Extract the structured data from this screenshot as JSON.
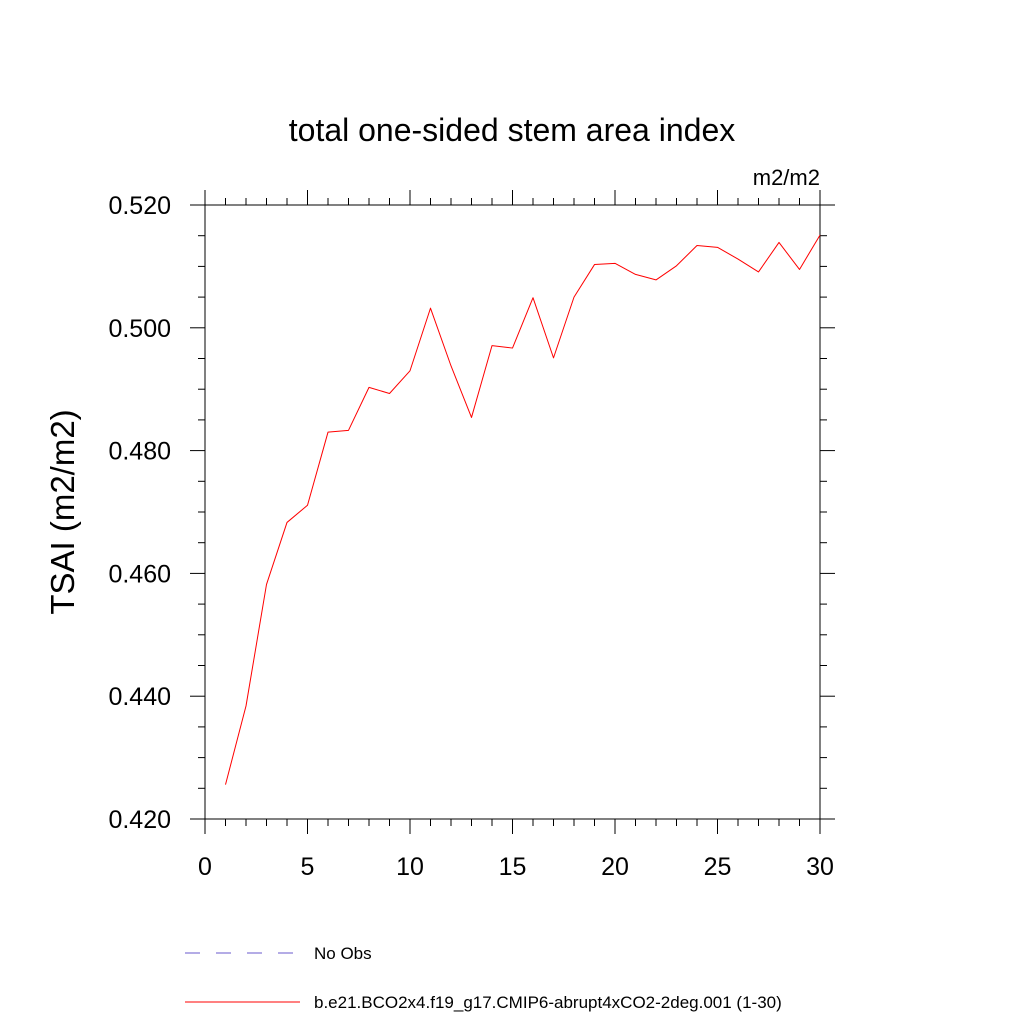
{
  "chart_data": {
    "type": "line",
    "title": "total one-sided stem area index",
    "units": "m2/m2",
    "xlabel": "",
    "ylabel": "TSAI  (m2/m2)",
    "xlim": [
      0,
      30
    ],
    "ylim": [
      0.42,
      0.52
    ],
    "x_ticks": [
      0,
      5,
      10,
      15,
      20,
      25,
      30
    ],
    "x_tick_labels": [
      "0",
      "5",
      "10",
      "15",
      "20",
      "25",
      "30"
    ],
    "y_ticks": [
      0.42,
      0.44,
      0.46,
      0.48,
      0.5,
      0.52
    ],
    "y_tick_labels": [
      "0.420",
      "0.440",
      "0.460",
      "0.480",
      "0.500",
      "0.520"
    ],
    "grid": false,
    "legend_placement": "bottom",
    "series": [
      {
        "name": "b.e21.BCO2x4.f19_g17.CMIP6-abrupt4xCO2-2deg.001 (1-30)",
        "color": "#ff0000",
        "style": "solid",
        "x": [
          1,
          2,
          3,
          4,
          5,
          6,
          7,
          8,
          9,
          10,
          11,
          12,
          13,
          14,
          15,
          16,
          17,
          18,
          19,
          20,
          21,
          22,
          23,
          24,
          25,
          26,
          27,
          28,
          29,
          30
        ],
        "y": [
          0.4256,
          0.4384,
          0.4582,
          0.4683,
          0.4711,
          0.483,
          0.4833,
          0.4903,
          0.4893,
          0.493,
          0.5032,
          0.4938,
          0.4854,
          0.4971,
          0.4967,
          0.5049,
          0.4951,
          0.505,
          0.5103,
          0.5105,
          0.5087,
          0.5078,
          0.5101,
          0.5134,
          0.5131,
          0.5112,
          0.5091,
          0.5139,
          0.5095,
          0.5151
        ]
      }
    ],
    "legend": [
      {
        "label": "No Obs",
        "color": "#6a5acd",
        "style": "dashed"
      },
      {
        "label": "b.e21.BCO2x4.f19_g17.CMIP6-abrupt4xCO2-2deg.001 (1-30)",
        "color": "#ff0000",
        "style": "solid"
      }
    ]
  }
}
